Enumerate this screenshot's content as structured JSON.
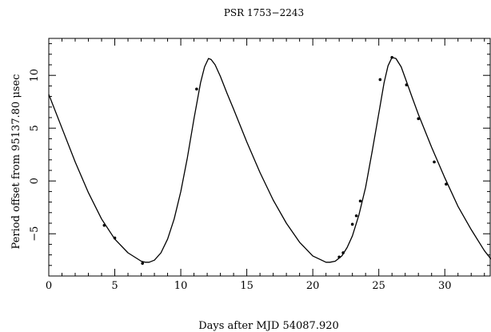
{
  "chart_data": {
    "type": "scatter",
    "title": "PSR 1753−2243",
    "xlabel": "Days after MJD  54087.920",
    "ylabel": "Period offset from     95137.80  μsec",
    "xlim": [
      0,
      33.5
    ],
    "ylim": [
      -9.0,
      13.5
    ],
    "x_ticks": [
      0,
      5,
      10,
      15,
      20,
      25,
      30
    ],
    "y_ticks": [
      -5,
      0,
      5,
      10
    ],
    "grid": false,
    "legend": "none",
    "colors": {
      "line": "#000000",
      "points": "#000000"
    },
    "series": [
      {
        "kind": "points",
        "x": [
          4.2,
          5.0,
          7.1,
          11.2,
          22.0,
          22.3,
          23.0,
          23.3,
          23.6,
          25.1,
          26.0,
          27.1,
          28.0,
          29.2,
          30.1
        ],
        "y": [
          -4.2,
          -5.4,
          -7.8,
          8.7,
          -7.2,
          -6.8,
          -4.1,
          -3.3,
          -1.9,
          9.6,
          11.7,
          9.1,
          5.9,
          1.8,
          -0.3
        ]
      },
      {
        "kind": "curve",
        "x": [
          0,
          1,
          2,
          3,
          4,
          5,
          6,
          7,
          7.3,
          7.6,
          8.0,
          8.5,
          9.0,
          9.5,
          10.0,
          10.5,
          11.0,
          11.5,
          11.8,
          12.1,
          12.3,
          12.6,
          13.0,
          13.5,
          14.0,
          15.0,
          16.0,
          17.0,
          18.0,
          19.0,
          20.0,
          21.0,
          21.3,
          21.7,
          22.2,
          22.6,
          23.0,
          23.5,
          24.0,
          24.5,
          25.0,
          25.4,
          25.7,
          26.0,
          26.3,
          26.7,
          27.1,
          27.5,
          28.0,
          29.0,
          30.0,
          31.0,
          32.0,
          33.0,
          33.5
        ],
        "y": [
          8.2,
          5.0,
          1.8,
          -1.1,
          -3.6,
          -5.5,
          -6.8,
          -7.6,
          -7.7,
          -7.7,
          -7.5,
          -6.8,
          -5.5,
          -3.6,
          -1.0,
          2.2,
          5.9,
          9.3,
          10.8,
          11.6,
          11.5,
          11.0,
          9.9,
          8.3,
          6.8,
          3.7,
          0.8,
          -1.8,
          -4.0,
          -5.8,
          -7.1,
          -7.7,
          -7.7,
          -7.6,
          -7.1,
          -6.3,
          -5.2,
          -3.2,
          -0.6,
          2.8,
          6.4,
          9.3,
          10.9,
          11.7,
          11.6,
          10.8,
          9.4,
          8.0,
          6.3,
          3.2,
          0.3,
          -2.4,
          -4.6,
          -6.6,
          -7.4
        ]
      }
    ]
  }
}
